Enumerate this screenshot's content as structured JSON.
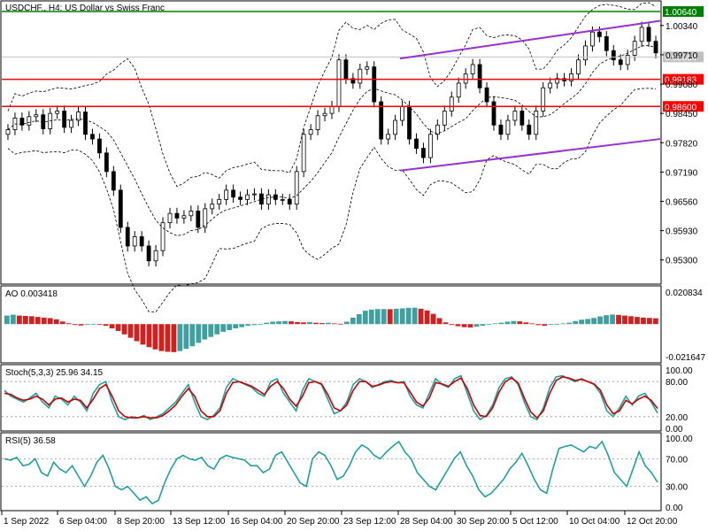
{
  "chart_data": [
    {
      "type": "candlestick",
      "title": "USDCHF., H4:  US Dollar vs Swiss Franc",
      "ylim": [
        0.948,
        1.0085
      ],
      "yticks": [
        "1.00340",
        "0.99710",
        "0.99080",
        "0.98450",
        "0.97820",
        "0.97190",
        "0.96560",
        "0.95930",
        "0.95300"
      ],
      "ytick_values": [
        1.0034,
        0.9971,
        0.9908,
        0.9845,
        0.9782,
        0.9719,
        0.9656,
        0.9593,
        0.953
      ],
      "xticks": [
        "1 Sep 2022",
        "6 Sep 04:00",
        "8 Sep 20:00",
        "13 Sep 12:00",
        "16 Sep 04:00",
        "20 Sep 20:00",
        "23 Sep 12:00",
        "28 Sep 04:00",
        "30 Sep 20:00",
        "5 Oct 12:00",
        "10 Oct 04:00",
        "12 Oct 20:00"
      ],
      "horizontal_levels": [
        {
          "label": "1.00640",
          "value": 1.0064,
          "color": "#008000"
        },
        {
          "label": "0.99664",
          "value": 0.99664,
          "color": "#c0c0c0"
        },
        {
          "label": "0.99183",
          "value": 0.99183,
          "color": "#ff0000"
        },
        {
          "label": "0.98600",
          "value": 0.986,
          "color": "#ff0000"
        }
      ],
      "channel_color": "#9932cc",
      "channel_upper": [
        [
          0.9963,
          0.9975
        ],
        [
          1.0044,
          1.003
        ]
      ],
      "channel_lower": [
        [
          0.9722,
          0.973
        ],
        [
          0.979,
          0.9798
        ]
      ],
      "close_path": [
        0.981,
        0.9835,
        0.982,
        0.9838,
        0.9842,
        0.9812,
        0.9845,
        0.985,
        0.9815,
        0.983,
        0.9848,
        0.98,
        0.979,
        0.976,
        0.972,
        0.968,
        0.96,
        0.956,
        0.958,
        0.956,
        0.9528,
        0.955,
        0.961,
        0.963,
        0.962,
        0.9625,
        0.9635,
        0.96,
        0.964,
        0.965,
        0.966,
        0.968,
        0.9665,
        0.966,
        0.967,
        0.9672,
        0.965,
        0.967,
        0.966,
        0.966,
        0.965,
        0.972,
        0.98,
        0.981,
        0.984,
        0.9845,
        0.986,
        0.996,
        0.992,
        0.991,
        0.994,
        0.9945,
        0.987,
        0.979,
        0.98,
        0.983,
        0.986,
        0.979,
        0.977,
        0.975,
        0.98,
        0.982,
        0.985,
        0.988,
        0.991,
        0.993,
        0.995,
        0.99,
        0.987,
        0.982,
        0.98,
        0.983,
        0.985,
        0.982,
        0.98,
        0.985,
        0.99,
        0.991,
        0.992,
        0.9915,
        0.993,
        0.996,
        0.999,
        1.002,
        1.001,
        0.998,
        0.996,
        0.995,
        0.997,
        1.0,
        1.003,
        1.0,
        0.9975
      ]
    },
    {
      "type": "bar",
      "title": "AO 0.003418",
      "ylim": [
        -0.021647,
        0.020834
      ],
      "yticks": [
        "0.020834",
        "-0.021647"
      ],
      "colors": {
        "up": "#40a0a0",
        "down": "#d02020"
      },
      "values": [
        0.005,
        0.0055,
        0.005,
        0.0048,
        0.0046,
        0.0042,
        0.0038,
        0.0035,
        0.0028,
        0.0015,
        0.0005,
        -0.0005,
        -0.0008,
        -0.0004,
        0.0002,
        -0.0002,
        -0.001,
        -0.0025,
        -0.004,
        -0.006,
        -0.008,
        -0.01,
        -0.012,
        -0.0135,
        -0.0148,
        -0.0158,
        -0.0162,
        -0.0164,
        -0.0158,
        -0.0145,
        -0.013,
        -0.011,
        -0.009,
        -0.0075,
        -0.006,
        -0.0045,
        -0.0035,
        -0.0025,
        -0.0018,
        -0.001,
        -0.0006,
        -0.0002,
        0.0008,
        0.0014,
        0.0016,
        0.0018,
        0.0016,
        0.0012,
        0.001,
        0.0012,
        0.0008,
        0.0006,
        0.0008,
        0.0004,
        0.0002,
        0.0014,
        0.0038,
        0.0058,
        0.0078,
        0.0085,
        0.0088,
        0.0088,
        0.0087,
        0.009,
        0.0092,
        0.0095,
        0.0096,
        0.009,
        0.008,
        0.006,
        0.0035,
        0.001,
        -0.0005,
        -0.0012,
        -0.0018,
        -0.002,
        -0.0015,
        -0.001,
        -0.0004,
        0.0004,
        0.0008,
        0.0014,
        0.0018,
        0.0016,
        0.001,
        0.0004,
        -0.0006,
        -0.001,
        -0.0004,
        0.0,
        0.0004,
        0.0008,
        0.0018,
        0.0026,
        0.003,
        0.0036,
        0.0045,
        0.0052,
        0.0056,
        0.0054,
        0.005,
        0.0046,
        0.0042,
        0.0038,
        0.0036,
        0.0034
      ]
    },
    {
      "type": "line",
      "title": "Stoch(5,3,3) 25.96 34.15",
      "ylim": [
        0,
        100
      ],
      "yticks": [
        "100.00",
        "80.00",
        "20.00",
        "0.00"
      ],
      "ytick_values": [
        100,
        80,
        20,
        0
      ],
      "levels": [
        80,
        20
      ],
      "series": [
        {
          "color": "#20a0a0",
          "values": [
            65,
            55,
            50,
            45,
            52,
            60,
            45,
            35,
            55,
            50,
            40,
            55,
            45,
            30,
            60,
            75,
            80,
            45,
            20,
            15,
            20,
            18,
            22,
            15,
            20,
            25,
            35,
            45,
            60,
            75,
            45,
            20,
            15,
            22,
            35,
            70,
            85,
            80,
            75,
            70,
            60,
            55,
            80,
            85,
            60,
            45,
            30,
            65,
            85,
            80,
            75,
            50,
            25,
            30,
            45,
            75,
            85,
            80,
            70,
            75,
            80,
            82,
            78,
            80,
            55,
            40,
            35,
            60,
            85,
            75,
            70,
            85,
            90,
            60,
            30,
            15,
            22,
            40,
            70,
            85,
            88,
            75,
            45,
            20,
            15,
            35,
            70,
            88,
            90,
            85,
            80,
            85,
            80,
            75,
            60,
            30,
            20,
            35,
            55,
            40,
            55,
            60,
            45,
            26
          ]
        },
        {
          "color": "#cc0000",
          "values": [
            60,
            58,
            52,
            48,
            50,
            55,
            50,
            40,
            50,
            52,
            45,
            50,
            48,
            35,
            50,
            68,
            75,
            55,
            30,
            20,
            18,
            18,
            20,
            18,
            18,
            22,
            30,
            40,
            55,
            68,
            55,
            30,
            20,
            20,
            30,
            60,
            78,
            80,
            76,
            72,
            65,
            58,
            72,
            80,
            68,
            50,
            38,
            55,
            78,
            80,
            76,
            58,
            35,
            30,
            40,
            65,
            80,
            80,
            72,
            74,
            78,
            80,
            78,
            78,
            62,
            45,
            38,
            52,
            78,
            76,
            72,
            80,
            86,
            68,
            40,
            22,
            20,
            35,
            62,
            80,
            86,
            78,
            52,
            28,
            18,
            30,
            60,
            82,
            88,
            86,
            82,
            84,
            80,
            76,
            65,
            40,
            25,
            30,
            48,
            42,
            50,
            55,
            48,
            34
          ]
        }
      ]
    },
    {
      "type": "line",
      "title": "RSI(5) 36.58",
      "ylim": [
        0,
        100
      ],
      "yticks": [
        "100.00",
        "70.00",
        "30.00",
        "0.00"
      ],
      "ytick_values": [
        100,
        70,
        30,
        0
      ],
      "levels": [
        70,
        30
      ],
      "series": [
        {
          "color": "#20a0a0",
          "values": [
            70,
            68,
            72,
            60,
            62,
            70,
            50,
            45,
            65,
            55,
            50,
            60,
            45,
            30,
            45,
            65,
            75,
            55,
            30,
            25,
            30,
            20,
            10,
            15,
            5,
            10,
            35,
            55,
            70,
            75,
            70,
            68,
            72,
            60,
            55,
            70,
            75,
            72,
            70,
            68,
            60,
            60,
            50,
            55,
            75,
            80,
            65,
            50,
            35,
            30,
            70,
            80,
            75,
            60,
            40,
            45,
            60,
            80,
            90,
            85,
            75,
            70,
            80,
            88,
            95,
            80,
            70,
            50,
            40,
            30,
            25,
            40,
            55,
            70,
            80,
            60,
            45,
            25,
            15,
            20,
            30,
            40,
            55,
            65,
            78,
            60,
            40,
            25,
            20,
            55,
            85,
            88,
            90,
            85,
            80,
            88,
            85,
            95,
            75,
            50,
            40,
            30,
            55,
            80,
            60,
            50,
            36
          ]
        }
      ]
    }
  ]
}
